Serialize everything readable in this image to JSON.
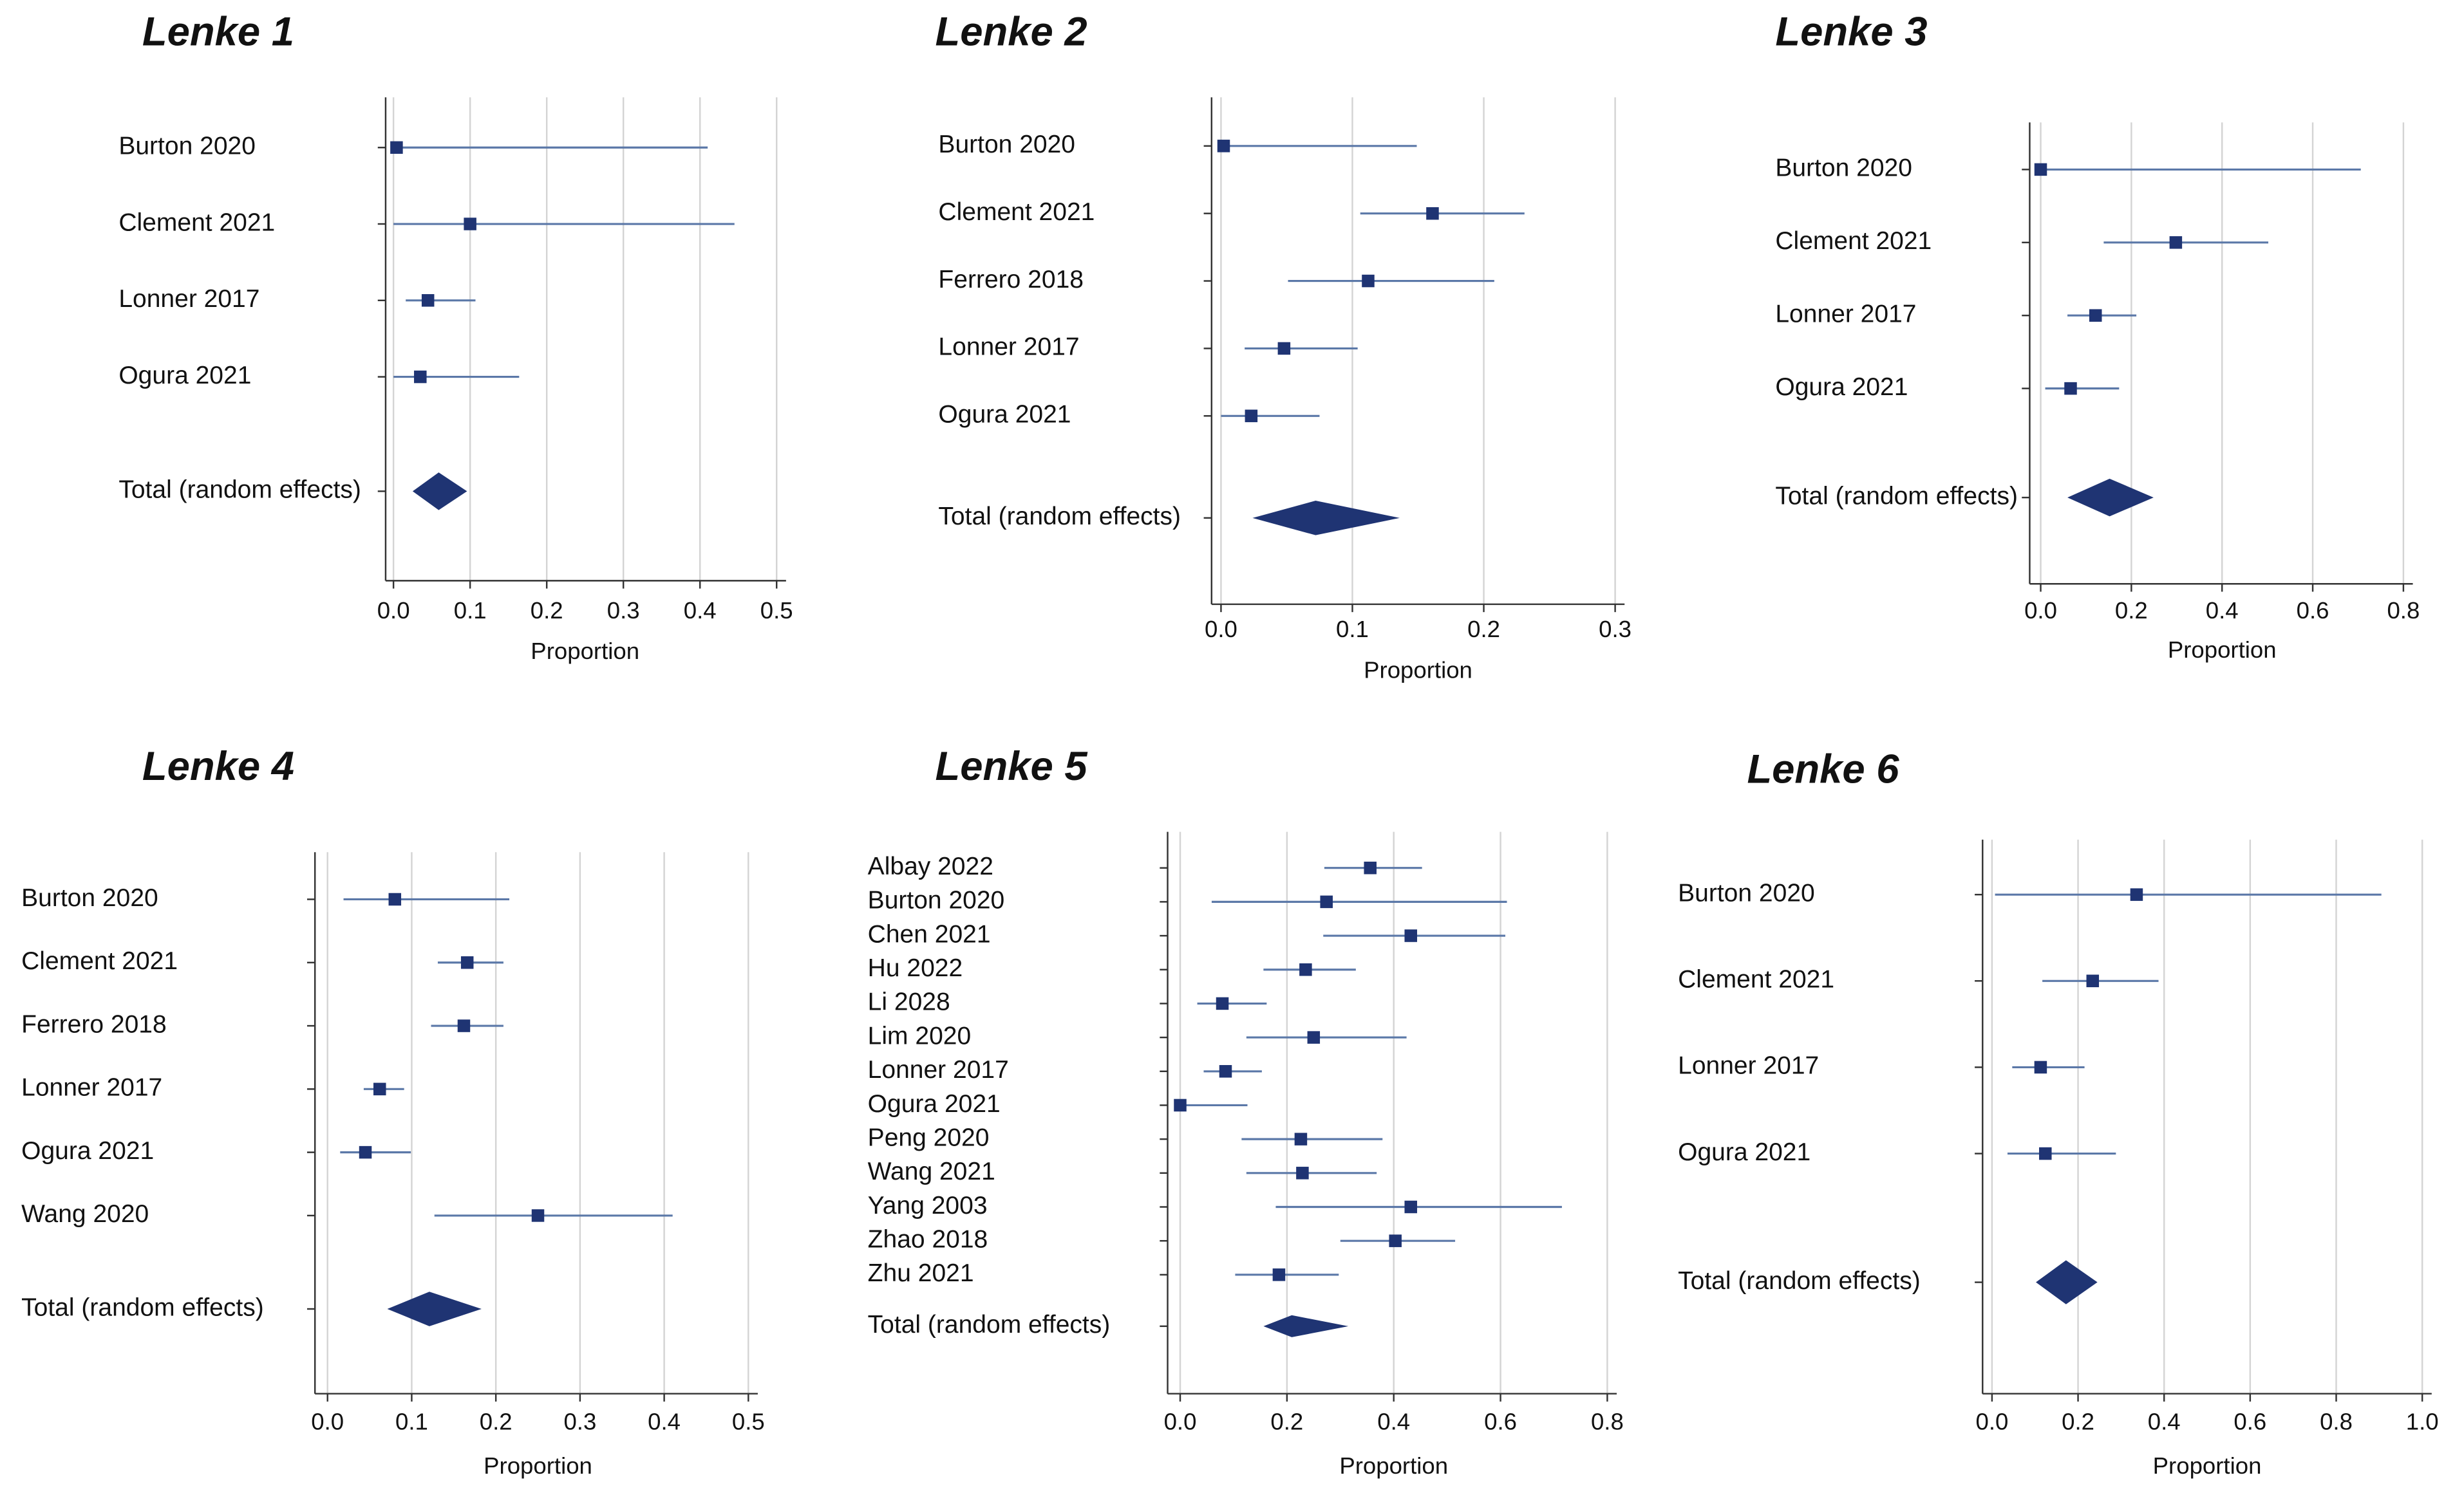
{
  "chart_data": [
    {
      "type": "forest",
      "title": "Lenke 1",
      "xlabel": "Proportion",
      "color": "#1f3473",
      "ci_color": "#5b78a8",
      "grid": true,
      "categories": [
        "Burton 2020",
        "Clement 2021",
        "Lonner 2017",
        "Ogura 2021",
        "Total (random effects)"
      ],
      "values": [
        0.004,
        0.1,
        0.045,
        0.035,
        0.059
      ],
      "lower": [
        0,
        0,
        0.016,
        0,
        0.025
      ],
      "upper": [
        0.41,
        0.445,
        0.107,
        0.164,
        0.096
      ],
      "xlim": [
        0,
        0.5
      ],
      "xticks": [
        {
          "value": 0,
          "label": "0.0"
        },
        0.1,
        0.2,
        0.3,
        0.4,
        0.5
      ]
    },
    {
      "type": "forest",
      "title": "Lenke 2",
      "xlabel": "Proportion",
      "color": "#1f3473",
      "ci_color": "#5b78a8",
      "grid": true,
      "categories": [
        "Burton 2020",
        "Clement 2021",
        "Ferrero 2018",
        "Lonner 2017",
        "Ogura 2021",
        "Total (random effects)"
      ],
      "values": [
        0.002,
        0.161,
        0.112,
        0.048,
        0.023,
        0.072
      ],
      "lower": [
        0,
        0.106,
        0.051,
        0.018,
        0,
        0.024
      ],
      "upper": [
        0.149,
        0.231,
        0.208,
        0.104,
        0.075,
        0.136
      ],
      "xlim": [
        0,
        0.3
      ],
      "xticks": [
        {
          "value": 0,
          "label": "0.0"
        },
        0.1,
        0.2,
        0.3
      ]
    },
    {
      "type": "forest",
      "title": "Lenke 3",
      "xlabel": "Proportion",
      "color": "#1f3473",
      "ci_color": "#5b78a8",
      "grid": true,
      "categories": [
        "Burton 2020",
        "Clement 2021",
        "Lonner 2017",
        "Ogura 2021",
        "Total (random effects)"
      ],
      "values": [
        0,
        0.298,
        0.121,
        0.066,
        0.152
      ],
      "lower": [
        0,
        0.139,
        0.059,
        0.01,
        0.059
      ],
      "upper": [
        0.706,
        0.502,
        0.211,
        0.173,
        0.249
      ],
      "xlim": [
        0,
        0.8
      ],
      "xticks": [
        {
          "value": 0,
          "label": "0.0"
        },
        0.2,
        0.4,
        0.6,
        0.8
      ]
    },
    {
      "type": "forest",
      "title": "Lenke 4",
      "xlabel": "Proportion",
      "color": "#1f3473",
      "ci_color": "#5b78a8",
      "grid": true,
      "categories": [
        "Burton 2020",
        "Clement 2021",
        "Ferrero 2018",
        "Lonner 2017",
        "Ogura 2021",
        "Wang 2020",
        "Total (random effects)"
      ],
      "values": [
        0.08,
        0.166,
        0.162,
        0.062,
        0.045,
        0.25,
        0.121
      ],
      "lower": [
        0.019,
        0.131,
        0.123,
        0.043,
        0.015,
        0.127,
        0.071
      ],
      "upper": [
        0.216,
        0.209,
        0.209,
        0.091,
        0.099,
        0.41,
        0.183
      ],
      "xlim": [
        0,
        0.5
      ],
      "xticks": [
        {
          "value": 0,
          "label": "0.0"
        },
        0.1,
        0.2,
        0.3,
        0.4,
        0.5
      ]
    },
    {
      "type": "forest",
      "title": "Lenke 5",
      "xlabel": "Proportion",
      "color": "#1f3473",
      "ci_color": "#5b78a8",
      "grid": true,
      "categories": [
        "Albay 2022",
        "Burton 2020",
        "Chen 2021",
        "Hu 2022",
        "Li 2028",
        "Lim 2020",
        "Lonner 2017",
        "Ogura 2021",
        "Peng 2020",
        "Wang 2021",
        "Yang 2003",
        "Zhao 2018",
        "Zhu 2021",
        "Total (random effects)"
      ],
      "values": [
        0.356,
        0.274,
        0.432,
        0.235,
        0.079,
        0.25,
        0.085,
        0,
        0.226,
        0.229,
        0.432,
        0.403,
        0.185,
        0.209
      ],
      "lower": [
        0.27,
        0.059,
        0.268,
        0.156,
        0.032,
        0.124,
        0.044,
        0,
        0.115,
        0.124,
        0.179,
        0.3,
        0.103,
        0.156
      ],
      "upper": [
        0.453,
        0.612,
        0.609,
        0.329,
        0.162,
        0.424,
        0.153,
        0.126,
        0.379,
        0.368,
        0.715,
        0.515,
        0.297,
        0.315
      ],
      "xlim": [
        0,
        0.8
      ],
      "xticks": [
        {
          "value": 0,
          "label": "0.0"
        },
        0.2,
        0.4,
        0.6,
        0.8
      ]
    },
    {
      "type": "forest",
      "title": "Lenke 6",
      "xlabel": "Proportion",
      "color": "#1f3473",
      "ci_color": "#5b78a8",
      "grid": true,
      "categories": [
        "Burton 2020",
        "Clement 2021",
        "Lonner 2017",
        "Ogura 2021",
        "Total (random effects)"
      ],
      "values": [
        0.336,
        0.234,
        0.113,
        0.124,
        0.172
      ],
      "lower": [
        0.007,
        0.117,
        0.047,
        0.036,
        0.102
      ],
      "upper": [
        0.905,
        0.387,
        0.215,
        0.288,
        0.245
      ],
      "xlim": [
        0,
        1
      ],
      "xticks": [
        {
          "value": 0,
          "label": "0.0"
        },
        0.2,
        0.4,
        0.6,
        0.8,
        {
          "value": 1,
          "label": "1.0"
        }
      ]
    }
  ]
}
